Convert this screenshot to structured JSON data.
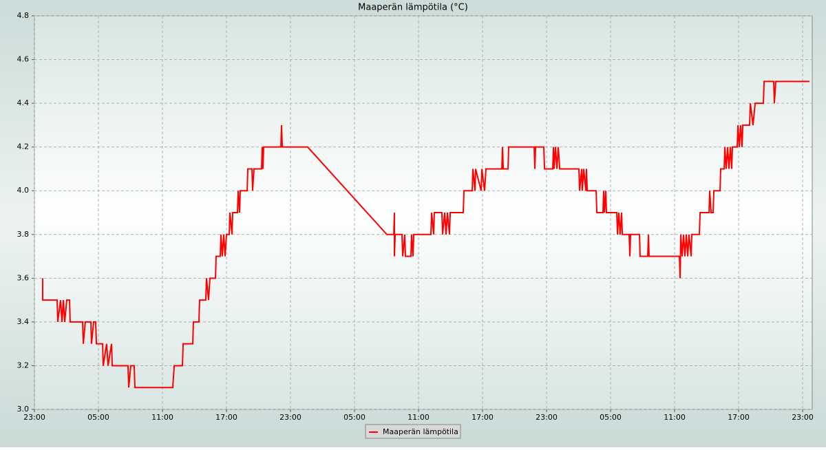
{
  "chart_data": {
    "type": "line",
    "title": "Maaperän lämpötila (°C)",
    "x": [
      0.77,
      0.77,
      2.13,
      2.19,
      2.45,
      2.58,
      2.71,
      2.84,
      3.03,
      3.29,
      3.35,
      4.52,
      4.58,
      4.77,
      5.29,
      5.35,
      5.55,
      5.74,
      5.81,
      6.39,
      6.45,
      6.77,
      6.9,
      7.23,
      7.29,
      8.77,
      8.84,
      9.03,
      9.35,
      9.42,
      12.97,
      13.1,
      13.87,
      13.94,
      14.84,
      14.9,
      15.42,
      15.48,
      16.06,
      16.13,
      16.32,
      16.45,
      16.97,
      17.03,
      17.42,
      17.48,
      17.61,
      17.74,
      17.87,
      18.0,
      18.26,
      18.32,
      18.52,
      18.58,
      19.03,
      19.1,
      19.23,
      19.29,
      19.94,
      20.0,
      20.39,
      20.45,
      20.58,
      21.29,
      21.35,
      21.42,
      21.48,
      23.1,
      23.16,
      23.23,
      25.61,
      33.03,
      33.68,
      33.74,
      33.74,
      33.81,
      34.45,
      34.52,
      34.71,
      34.77,
      35.29,
      35.35,
      35.48,
      35.55,
      37.16,
      37.23,
      37.42,
      37.48,
      38.19,
      38.26,
      38.45,
      38.58,
      38.71,
      38.9,
      38.97,
      40.19,
      40.26,
      41.03,
      41.1,
      41.29,
      41.35,
      41.87,
      41.94,
      42.19,
      42.32,
      43.81,
      43.87,
      43.94,
      44.39,
      44.45,
      46.84,
      46.9,
      46.97,
      47.74,
      47.81,
      48.58,
      48.65,
      48.71,
      48.84,
      48.97,
      49.1,
      49.23,
      51.03,
      51.1,
      51.29,
      51.35,
      51.48,
      51.68,
      51.74,
      51.81,
      52.65,
      52.71,
      53.29,
      53.35,
      53.42,
      53.55,
      53.61,
      54.58,
      54.65,
      54.77,
      54.9,
      55.03,
      55.1,
      55.74,
      55.81,
      55.87,
      56.71,
      56.77,
      57.48,
      57.55,
      57.61,
      60.45,
      60.52,
      60.58,
      60.71,
      60.84,
      60.97,
      61.1,
      61.23,
      61.35,
      61.55,
      61.61,
      62.32,
      62.39,
      63.23,
      63.29,
      63.42,
      63.61,
      63.68,
      64.26,
      64.32,
      64.65,
      64.71,
      64.84,
      64.97,
      65.1,
      65.23,
      65.35,
      65.42,
      65.87,
      65.94,
      66.06,
      66.19,
      66.32,
      66.39,
      67.03,
      67.1,
      67.35,
      67.55,
      68.32,
      68.39,
      69.29,
      69.35,
      69.48,
      72.65
    ],
    "series": [
      {
        "name": "Maaperän lämpötila",
        "color": "#ff0000",
        "values": [
          3.6,
          3.5,
          3.5,
          3.4,
          3.5,
          3.4,
          3.5,
          3.4,
          3.5,
          3.5,
          3.4,
          3.4,
          3.3,
          3.4,
          3.4,
          3.3,
          3.4,
          3.4,
          3.3,
          3.3,
          3.2,
          3.3,
          3.2,
          3.3,
          3.2,
          3.2,
          3.1,
          3.2,
          3.2,
          3.1,
          3.1,
          3.2,
          3.2,
          3.3,
          3.3,
          3.4,
          3.4,
          3.5,
          3.5,
          3.6,
          3.5,
          3.6,
          3.6,
          3.7,
          3.7,
          3.8,
          3.7,
          3.8,
          3.7,
          3.8,
          3.8,
          3.9,
          3.8,
          3.9,
          3.9,
          4.0,
          3.9,
          4.0,
          4.0,
          4.1,
          4.1,
          4.0,
          4.1,
          4.1,
          4.2,
          4.1,
          4.2,
          4.2,
          4.3,
          4.2,
          4.2,
          3.8,
          3.8,
          3.9,
          3.7,
          3.8,
          3.8,
          3.7,
          3.8,
          3.7,
          3.7,
          3.8,
          3.7,
          3.8,
          3.8,
          3.9,
          3.8,
          3.9,
          3.9,
          3.8,
          3.9,
          3.8,
          3.9,
          3.8,
          3.9,
          3.9,
          4.0,
          4.0,
          4.1,
          4.0,
          4.1,
          4.0,
          4.1,
          4.0,
          4.1,
          4.1,
          4.2,
          4.1,
          4.1,
          4.2,
          4.2,
          4.1,
          4.2,
          4.2,
          4.1,
          4.1,
          4.2,
          4.1,
          4.2,
          4.1,
          4.2,
          4.1,
          4.1,
          4.0,
          4.1,
          4.0,
          4.1,
          4.0,
          4.1,
          4.0,
          4.0,
          3.9,
          3.9,
          4.0,
          3.9,
          4.0,
          3.9,
          3.9,
          3.8,
          3.9,
          3.8,
          3.9,
          3.8,
          3.8,
          3.7,
          3.8,
          3.8,
          3.7,
          3.7,
          3.8,
          3.7,
          3.7,
          3.6,
          3.8,
          3.7,
          3.8,
          3.7,
          3.8,
          3.7,
          3.8,
          3.7,
          3.8,
          3.8,
          3.9,
          3.9,
          4.0,
          3.9,
          3.9,
          4.0,
          4.0,
          4.1,
          4.1,
          4.2,
          4.1,
          4.2,
          4.1,
          4.2,
          4.1,
          4.2,
          4.2,
          4.3,
          4.2,
          4.3,
          4.2,
          4.3,
          4.3,
          4.4,
          4.3,
          4.4,
          4.4,
          4.5,
          4.5,
          4.4,
          4.5,
          4.5
        ]
      }
    ],
    "xlim": [
      0,
      72.9
    ],
    "xticks": [
      {
        "value": 0,
        "label": "23:00"
      },
      {
        "value": 6,
        "label": "05:00"
      },
      {
        "value": 12,
        "label": "11:00"
      },
      {
        "value": 18,
        "label": "17:00"
      },
      {
        "value": 24,
        "label": "23:00"
      },
      {
        "value": 30,
        "label": "05:00"
      },
      {
        "value": 36,
        "label": "11:00"
      },
      {
        "value": 42,
        "label": "17:00"
      },
      {
        "value": 48,
        "label": "23:00"
      },
      {
        "value": 54,
        "label": "05:00"
      },
      {
        "value": 60,
        "label": "11:00"
      },
      {
        "value": 66,
        "label": "17:00"
      },
      {
        "value": 72,
        "label": "23:00"
      }
    ],
    "ylim": [
      3.0,
      4.8
    ],
    "yticks": [
      {
        "value": 3,
        "label": "3.0"
      },
      3.2,
      3.4,
      3.6,
      3.8,
      {
        "value": 4,
        "label": "4.0"
      },
      4.2,
      4.4,
      4.6,
      4.8
    ],
    "grid": true,
    "legend": "bottom"
  }
}
